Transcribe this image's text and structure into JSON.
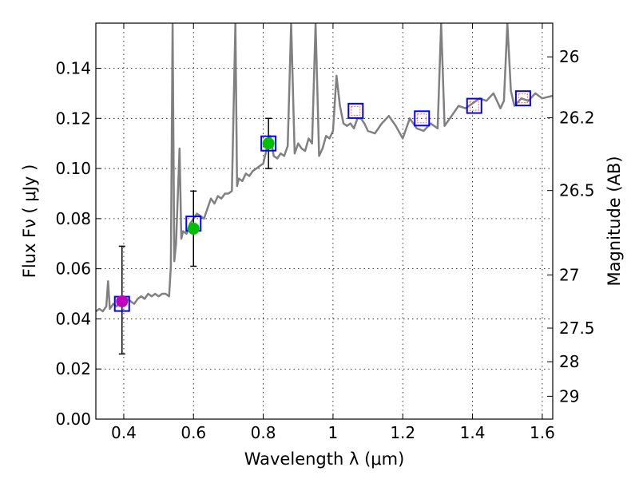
{
  "chart_data": {
    "type": "scatter",
    "title": "",
    "xlabel": "Wavelength  λ (μm)",
    "ylabel": "Flux  Fν  ( μJy )",
    "ylabel_right": "Magnitude (AB)",
    "xlim": [
      0.32,
      1.63
    ],
    "ylim": [
      0.0,
      0.158
    ],
    "x_ticks": [
      0.4,
      0.6,
      0.8,
      1.0,
      1.2,
      1.4,
      1.6
    ],
    "x_tick_labels": [
      "0.4",
      "0.6",
      "0.8",
      "1",
      "1.2",
      "1.4",
      "1.6"
    ],
    "y_ticks": [
      0.0,
      0.02,
      0.04,
      0.06,
      0.08,
      0.1,
      0.12,
      0.14
    ],
    "y_tick_labels": [
      "0.00",
      "0.02",
      "0.04",
      "0.06",
      "0.08",
      "0.10",
      "0.12",
      "0.14"
    ],
    "right_ticks": [
      26,
      26.2,
      26.5,
      27,
      27.5,
      28,
      29
    ],
    "right_tick_labels": [
      "26",
      "26.2",
      "26.5",
      "27",
      "27.5",
      "28",
      "29"
    ],
    "grid": true,
    "colors": {
      "spectrum": "#808080",
      "model_box": "#0000ff",
      "upper_limit_box": "#ff6060",
      "detection_green": "#00c000",
      "detection_magenta": "#c000c0",
      "errorbar": "#000000"
    },
    "model_spectrum": {
      "x": [
        0.32,
        0.33,
        0.34,
        0.35,
        0.355,
        0.36,
        0.37,
        0.38,
        0.39,
        0.4,
        0.41,
        0.42,
        0.43,
        0.44,
        0.45,
        0.46,
        0.47,
        0.48,
        0.49,
        0.5,
        0.51,
        0.52,
        0.53,
        0.535,
        0.54,
        0.545,
        0.55,
        0.56,
        0.565,
        0.57,
        0.58,
        0.59,
        0.6,
        0.61,
        0.62,
        0.63,
        0.64,
        0.65,
        0.66,
        0.67,
        0.68,
        0.69,
        0.7,
        0.71,
        0.72,
        0.725,
        0.73,
        0.74,
        0.75,
        0.76,
        0.77,
        0.78,
        0.79,
        0.8,
        0.81,
        0.82,
        0.83,
        0.84,
        0.85,
        0.86,
        0.87,
        0.88,
        0.89,
        0.9,
        0.91,
        0.92,
        0.93,
        0.94,
        0.95,
        0.96,
        0.97,
        0.98,
        0.99,
        1.0,
        1.01,
        1.02,
        1.03,
        1.04,
        1.05,
        1.06,
        1.07,
        1.08,
        1.09,
        1.1,
        1.12,
        1.14,
        1.16,
        1.18,
        1.2,
        1.22,
        1.24,
        1.26,
        1.28,
        1.3,
        1.31,
        1.32,
        1.34,
        1.36,
        1.38,
        1.4,
        1.42,
        1.44,
        1.46,
        1.48,
        1.49,
        1.5,
        1.51,
        1.52,
        1.54,
        1.56,
        1.58,
        1.6,
        1.63
      ],
      "y": [
        0.043,
        0.044,
        0.043,
        0.045,
        0.055,
        0.044,
        0.046,
        0.045,
        0.047,
        0.046,
        0.048,
        0.047,
        0.046,
        0.048,
        0.049,
        0.048,
        0.05,
        0.049,
        0.05,
        0.049,
        0.05,
        0.05,
        0.049,
        0.061,
        0.158,
        0.063,
        0.07,
        0.108,
        0.072,
        0.075,
        0.074,
        0.078,
        0.08,
        0.082,
        0.081,
        0.08,
        0.084,
        0.088,
        0.086,
        0.089,
        0.088,
        0.09,
        0.09,
        0.091,
        0.158,
        0.093,
        0.096,
        0.095,
        0.098,
        0.097,
        0.099,
        0.1,
        0.101,
        0.102,
        0.108,
        0.113,
        0.105,
        0.104,
        0.106,
        0.105,
        0.109,
        0.158,
        0.106,
        0.11,
        0.108,
        0.107,
        0.112,
        0.11,
        0.158,
        0.105,
        0.108,
        0.113,
        0.112,
        0.115,
        0.137,
        0.125,
        0.118,
        0.117,
        0.118,
        0.116,
        0.12,
        0.12,
        0.118,
        0.115,
        0.114,
        0.118,
        0.121,
        0.117,
        0.112,
        0.12,
        0.116,
        0.115,
        0.118,
        0.116,
        0.158,
        0.117,
        0.121,
        0.125,
        0.124,
        0.126,
        0.128,
        0.127,
        0.13,
        0.124,
        0.127,
        0.158,
        0.131,
        0.125,
        0.128,
        0.127,
        0.13,
        0.128,
        0.129
      ]
    },
    "photometry": [
      {
        "x": 0.395,
        "model": 0.046,
        "observed": 0.047,
        "err_low": 0.026,
        "err_high": 0.069,
        "kind": "detection",
        "color": "magenta"
      },
      {
        "x": 0.6,
        "model": 0.078,
        "observed": 0.076,
        "err_low": 0.061,
        "err_high": 0.091,
        "kind": "detection",
        "color": "green"
      },
      {
        "x": 0.815,
        "model": 0.11,
        "observed": 0.11,
        "err_low": 0.1,
        "err_high": 0.12,
        "kind": "detection",
        "color": "green"
      },
      {
        "x": 1.065,
        "model": 0.123,
        "kind": "upper_limit"
      },
      {
        "x": 1.255,
        "model": 0.12,
        "kind": "upper_limit"
      },
      {
        "x": 1.405,
        "model": 0.125,
        "kind": "upper_limit"
      },
      {
        "x": 1.545,
        "model": 0.128,
        "kind": "upper_limit"
      }
    ]
  }
}
